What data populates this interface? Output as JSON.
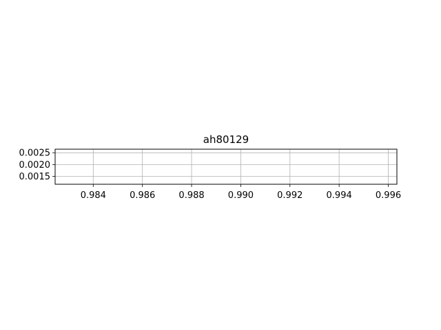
{
  "chart_data": {
    "type": "line",
    "title": "ah80129",
    "xlabel": "",
    "ylabel": "",
    "xlim": [
      0.98245,
      0.99635
    ],
    "ylim": [
      0.00117,
      0.00265
    ],
    "grid": true,
    "x_ticks": [
      {
        "value": 0.984,
        "label": "0.984"
      },
      {
        "value": 0.986,
        "label": "0.986"
      },
      {
        "value": 0.988,
        "label": "0.988"
      },
      {
        "value": 0.99,
        "label": "0.990"
      },
      {
        "value": 0.992,
        "label": "0.992"
      },
      {
        "value": 0.994,
        "label": "0.994"
      },
      {
        "value": 0.996,
        "label": "0.996"
      }
    ],
    "y_ticks": [
      {
        "value": 0.0015,
        "label": "0.0015"
      },
      {
        "value": 0.002,
        "label": "0.0020"
      },
      {
        "value": 0.0025,
        "label": "0.0025"
      }
    ],
    "series": [],
    "colors": {
      "grid": "#b0b0b0",
      "axes": "#000000",
      "background": "#ffffff"
    }
  }
}
